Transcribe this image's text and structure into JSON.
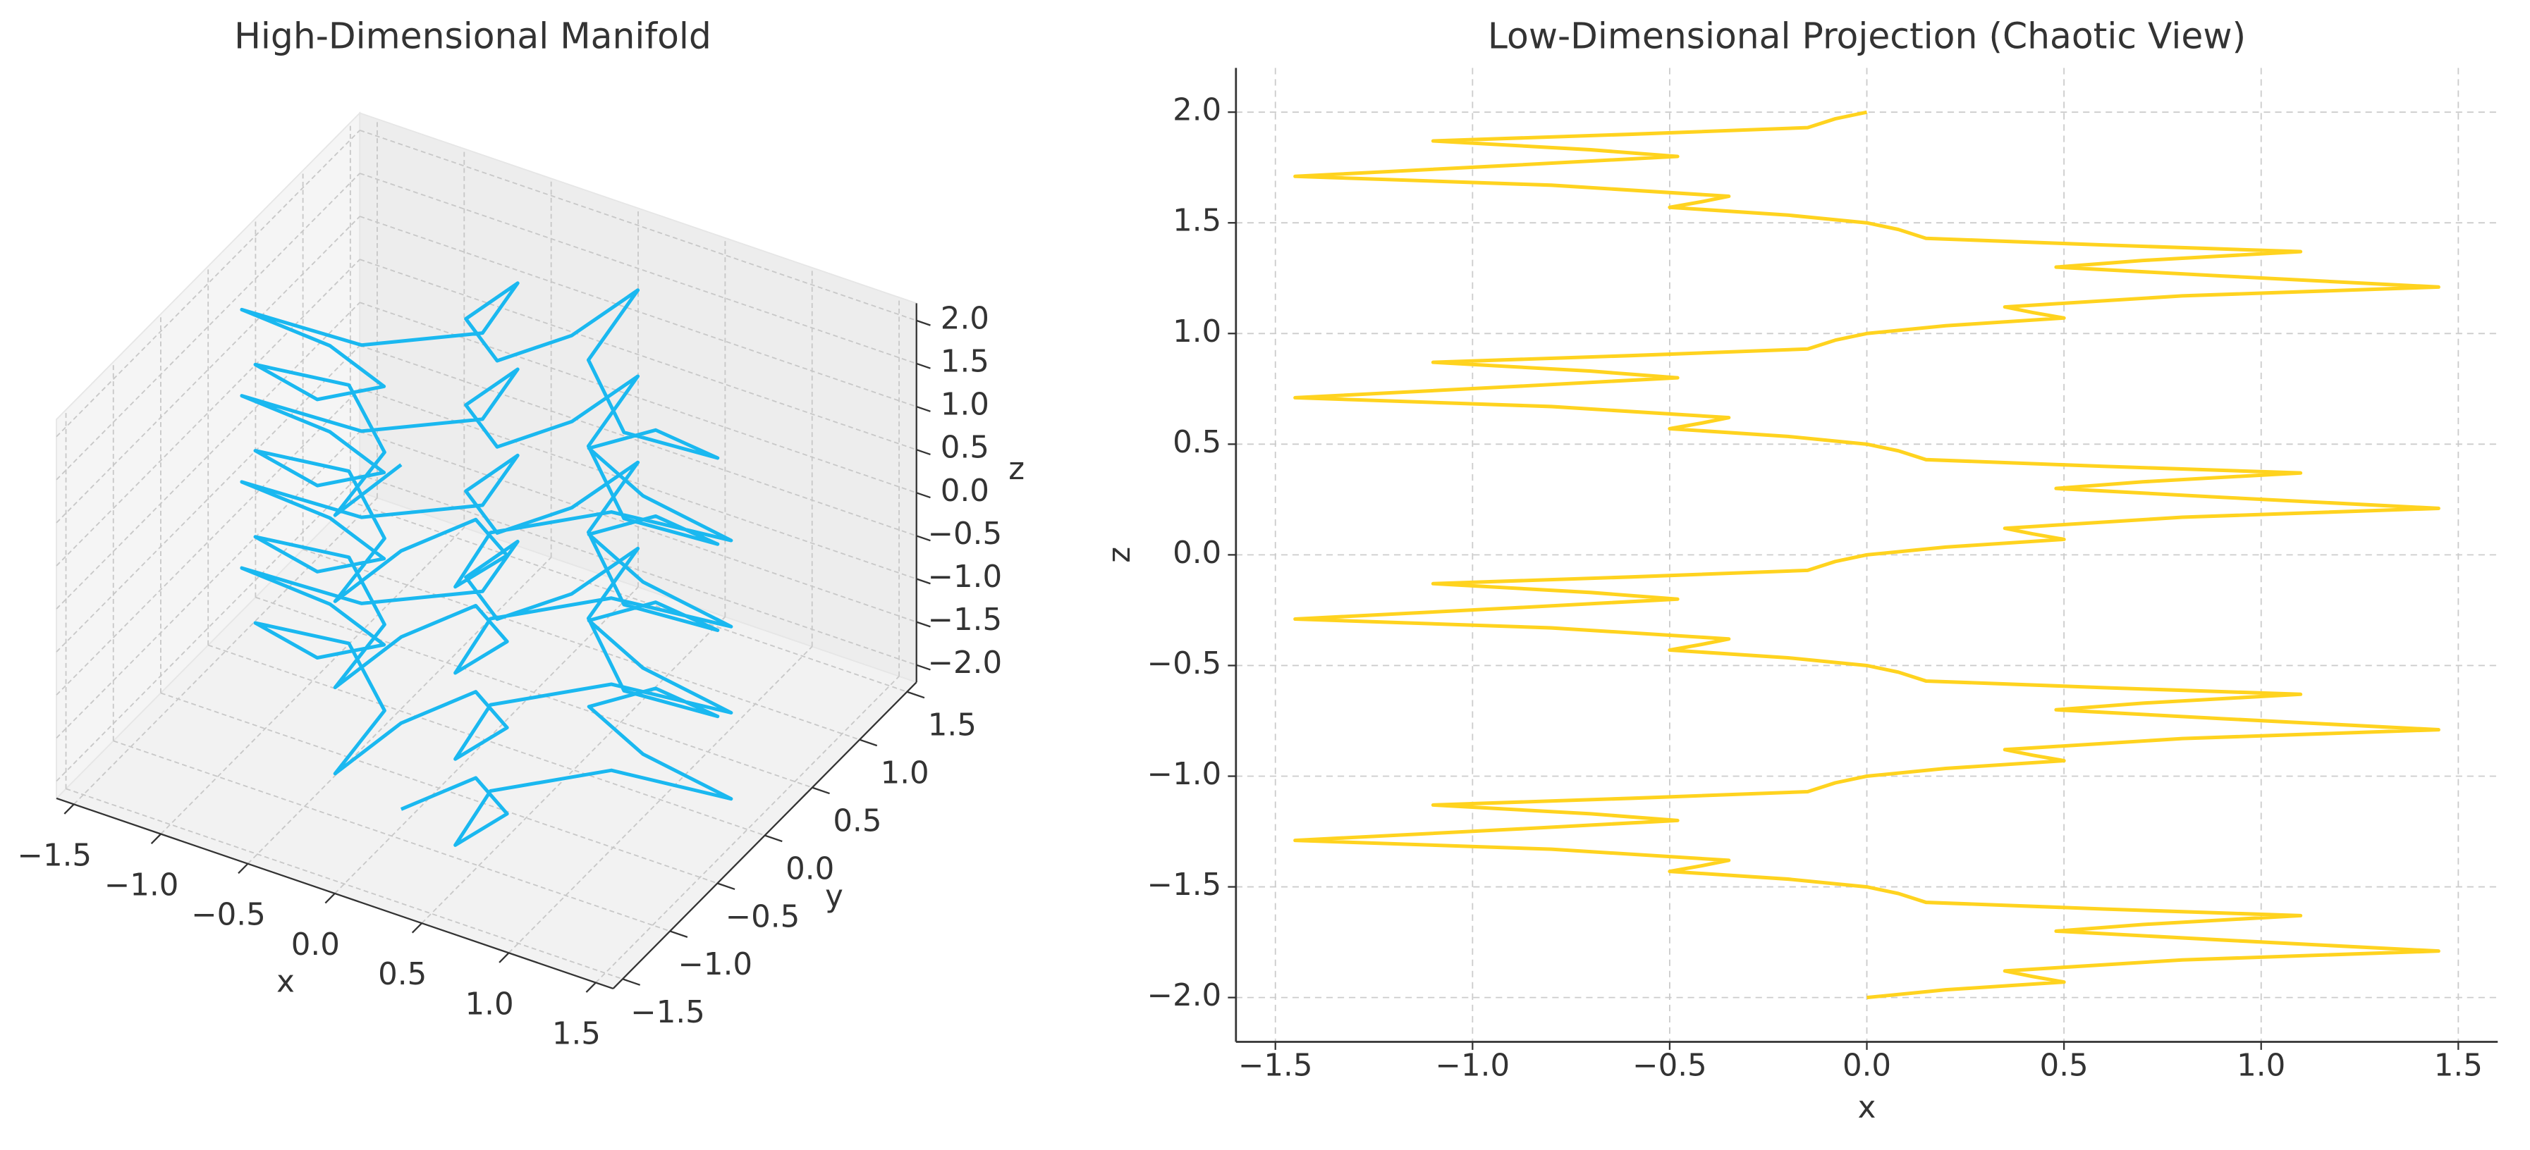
{
  "chart_data": [
    {
      "type": "line3d",
      "title": "High-Dimensional Manifold",
      "xlabel": "x",
      "ylabel": "y",
      "zlabel": "z",
      "xlim": [
        -1.6,
        1.6
      ],
      "ylim": [
        -1.6,
        1.6
      ],
      "zlim": [
        -2.2,
        2.2
      ],
      "xticks": [
        {
          "value": -1.5,
          "label": "−1.5"
        },
        {
          "value": -1,
          "label": "−1.0"
        },
        {
          "value": -0.5,
          "label": "−0.5"
        },
        {
          "value": 0,
          "label": "0.0"
        },
        0.5,
        {
          "value": 1,
          "label": "1.0"
        },
        1.5
      ],
      "yticks": [
        {
          "value": -1.5,
          "label": "−1.5"
        },
        {
          "value": -1,
          "label": "−1.0"
        },
        {
          "value": -0.5,
          "label": "−0.5"
        },
        {
          "value": 0,
          "label": "0.0"
        },
        0.5,
        {
          "value": 1,
          "label": "1.0"
        },
        1.5
      ],
      "zticks": [
        {
          "value": -2,
          "label": "−2.0"
        },
        {
          "value": -1.5,
          "label": "−1.5"
        },
        {
          "value": -1,
          "label": "−1.0"
        },
        {
          "value": -0.5,
          "label": "−0.5"
        },
        {
          "value": 0,
          "label": "0.0"
        },
        0.5,
        {
          "value": 1,
          "label": "1.0"
        },
        1.5,
        {
          "value": 2,
          "label": "2.0"
        }
      ],
      "grid": true,
      "series": [
        {
          "color": "#1ab8f0",
          "x": [
            0,
            -0.08,
            -0.15,
            -0.6,
            -1.1,
            -0.7,
            -0.48,
            -0.9,
            -1.45,
            -0.8,
            -0.35,
            -0.42,
            -0.5,
            -0.2,
            0,
            0.08,
            0.15,
            0.6,
            1.1,
            0.7,
            0.48,
            0.9,
            1.45,
            0.8,
            0.35,
            0.42,
            0.5,
            0.2,
            0,
            -0.08,
            -0.15,
            -0.6,
            -1.1,
            -0.7,
            -0.48,
            -0.9,
            -1.45,
            -0.8,
            -0.35,
            -0.42,
            -0.5,
            -0.2,
            0,
            0.08,
            0.15,
            0.6,
            1.1,
            0.7,
            0.48,
            0.9,
            1.45,
            0.8,
            0.35,
            0.42,
            0.5,
            0.2,
            0,
            -0.08,
            -0.15,
            -0.6,
            -1.1,
            -0.7,
            -0.48,
            -0.9,
            -1.45,
            -0.8,
            -0.35,
            -0.42,
            -0.5,
            -0.2,
            0,
            0.08,
            0.15,
            0.6,
            1.1,
            0.7,
            0.48,
            0.9,
            1.45,
            0.8,
            0.35,
            0.42,
            0.5,
            0.2,
            0,
            -0.08,
            -0.15,
            -0.6,
            -1.1,
            -0.7,
            -0.48,
            -0.9,
            -1.45,
            -0.8,
            -0.35,
            -0.42,
            -0.5,
            -0.2,
            0,
            0.08,
            0.15,
            0.6,
            1.1,
            0.7,
            0.48,
            0.9,
            1.45,
            0.8,
            0.35,
            0.42,
            0.5,
            0.2,
            0
          ],
          "y": [
            -0.9,
            -1.45,
            -0.8,
            -0.35,
            -0.42,
            -0.5,
            -0.2,
            0,
            0.08,
            0.15,
            0.6,
            1.1,
            0.7,
            0.48,
            0.9,
            1.45,
            0.8,
            0.35,
            0.42,
            0.5,
            0.2,
            0,
            -0.08,
            -0.15,
            -0.6,
            -1.1,
            -0.7,
            -0.48,
            -0.9,
            -1.45,
            -0.8,
            -0.35,
            -0.42,
            -0.5,
            -0.2,
            0,
            0.08,
            0.15,
            0.6,
            1.1,
            0.7,
            0.48,
            0.9,
            1.45,
            0.8,
            0.35,
            0.42,
            0.5,
            0.2,
            0,
            -0.08,
            -0.15,
            -0.6,
            -1.1,
            -0.7,
            -0.48,
            -0.9,
            -1.45,
            -0.8,
            -0.35,
            -0.42,
            -0.5,
            -0.2,
            0,
            0.08,
            0.15,
            0.6,
            1.1,
            0.7,
            0.48,
            0.9,
            1.45,
            0.8,
            0.35,
            0.42,
            0.5,
            0.2,
            0,
            -0.08,
            -0.15,
            -0.6,
            -1.1,
            -0.7,
            -0.48,
            -0.9,
            -1.45,
            -0.8,
            -0.35,
            -0.42,
            -0.5,
            -0.2,
            0,
            0.08,
            0.15,
            0.6,
            1.1,
            0.7,
            0.48,
            0.9,
            1.45,
            0.8,
            0.35,
            0.42,
            0.5,
            0.2,
            0,
            -0.08,
            -0.15,
            -0.6,
            -1.1,
            -0.7,
            -0.48,
            -0.9
          ],
          "z": [
            2.0,
            1.97,
            1.93,
            1.9,
            1.87,
            1.83,
            1.8,
            1.76,
            1.71,
            1.67,
            1.62,
            1.595,
            1.57,
            1.535,
            1.5,
            1.47,
            1.43,
            1.4,
            1.37,
            1.33,
            1.3,
            1.26,
            1.21,
            1.17,
            1.12,
            1.095,
            1.07,
            1.035,
            1.0,
            0.97,
            0.93,
            0.9,
            0.87,
            0.83,
            0.8,
            0.76,
            0.71,
            0.67,
            0.62,
            0.595,
            0.57,
            0.535,
            0.5,
            0.47,
            0.43,
            0.4,
            0.37,
            0.33,
            0.3,
            0.26,
            0.21,
            0.17,
            0.12,
            0.095,
            0.07,
            0.035,
            0.0,
            -0.03,
            -0.07,
            -0.1,
            -0.13,
            -0.17,
            -0.2,
            -0.24,
            -0.29,
            -0.33,
            -0.38,
            -0.405,
            -0.43,
            -0.465,
            -0.5,
            -0.53,
            -0.57,
            -0.6,
            -0.63,
            -0.67,
            -0.7,
            -0.74,
            -0.79,
            -0.83,
            -0.88,
            -0.905,
            -0.93,
            -0.965,
            -1.0,
            -1.03,
            -1.07,
            -1.1,
            -1.13,
            -1.17,
            -1.2,
            -1.24,
            -1.29,
            -1.33,
            -1.38,
            -1.405,
            -1.43,
            -1.465,
            -1.5,
            -1.53,
            -1.57,
            -1.6,
            -1.63,
            -1.67,
            -1.7,
            -1.74,
            -1.79,
            -1.83,
            -1.88,
            -1.905,
            -1.93,
            -1.965,
            -2.0
          ]
        }
      ]
    },
    {
      "type": "line",
      "title": "Low-Dimensional Projection (Chaotic View)",
      "xlabel": "x",
      "ylabel": "z",
      "xlim": [
        -1.6,
        1.6
      ],
      "ylim": [
        -2.2,
        2.2
      ],
      "xticks": [
        {
          "value": -1.5,
          "label": "−1.5"
        },
        {
          "value": -1,
          "label": "−1.0"
        },
        {
          "value": -0.5,
          "label": "−0.5"
        },
        {
          "value": 0,
          "label": "0.0"
        },
        0.5,
        {
          "value": 1,
          "label": "1.0"
        },
        1.5
      ],
      "yticks": [
        {
          "value": -2,
          "label": "−2.0"
        },
        {
          "value": -1.5,
          "label": "−1.5"
        },
        {
          "value": -1,
          "label": "−1.0"
        },
        {
          "value": -0.5,
          "label": "−0.5"
        },
        {
          "value": 0,
          "label": "0.0"
        },
        0.5,
        {
          "value": 1,
          "label": "1.0"
        },
        1.5,
        {
          "value": 2,
          "label": "2.0"
        }
      ],
      "grid": true,
      "series": [
        {
          "color": "#ffd31f",
          "x": [
            0,
            -0.08,
            -0.15,
            -0.6,
            -1.1,
            -0.7,
            -0.48,
            -0.9,
            -1.45,
            -0.8,
            -0.35,
            -0.42,
            -0.5,
            -0.2,
            0,
            0.08,
            0.15,
            0.6,
            1.1,
            0.7,
            0.48,
            0.9,
            1.45,
            0.8,
            0.35,
            0.42,
            0.5,
            0.2,
            0,
            -0.08,
            -0.15,
            -0.6,
            -1.1,
            -0.7,
            -0.48,
            -0.9,
            -1.45,
            -0.8,
            -0.35,
            -0.42,
            -0.5,
            -0.2,
            0,
            0.08,
            0.15,
            0.6,
            1.1,
            0.7,
            0.48,
            0.9,
            1.45,
            0.8,
            0.35,
            0.42,
            0.5,
            0.2,
            0,
            -0.08,
            -0.15,
            -0.6,
            -1.1,
            -0.7,
            -0.48,
            -0.9,
            -1.45,
            -0.8,
            -0.35,
            -0.42,
            -0.5,
            -0.2,
            0,
            0.08,
            0.15,
            0.6,
            1.1,
            0.7,
            0.48,
            0.9,
            1.45,
            0.8,
            0.35,
            0.42,
            0.5,
            0.2,
            0,
            -0.08,
            -0.15,
            -0.6,
            -1.1,
            -0.7,
            -0.48,
            -0.9,
            -1.45,
            -0.8,
            -0.35,
            -0.42,
            -0.5,
            -0.2,
            0,
            0.08,
            0.15,
            0.6,
            1.1,
            0.7,
            0.48,
            0.9,
            1.45,
            0.8,
            0.35,
            0.42,
            0.5,
            0.2,
            0
          ],
          "values": [
            2.0,
            1.97,
            1.93,
            1.9,
            1.87,
            1.83,
            1.8,
            1.76,
            1.71,
            1.67,
            1.62,
            1.595,
            1.57,
            1.535,
            1.5,
            1.47,
            1.43,
            1.4,
            1.37,
            1.33,
            1.3,
            1.26,
            1.21,
            1.17,
            1.12,
            1.095,
            1.07,
            1.035,
            1.0,
            0.97,
            0.93,
            0.9,
            0.87,
            0.83,
            0.8,
            0.76,
            0.71,
            0.67,
            0.62,
            0.595,
            0.57,
            0.535,
            0.5,
            0.47,
            0.43,
            0.4,
            0.37,
            0.33,
            0.3,
            0.26,
            0.21,
            0.17,
            0.12,
            0.095,
            0.07,
            0.035,
            0.0,
            -0.03,
            -0.07,
            -0.1,
            -0.13,
            -0.17,
            -0.2,
            -0.24,
            -0.29,
            -0.33,
            -0.38,
            -0.405,
            -0.43,
            -0.465,
            -0.5,
            -0.53,
            -0.57,
            -0.6,
            -0.63,
            -0.67,
            -0.7,
            -0.74,
            -0.79,
            -0.83,
            -0.88,
            -0.905,
            -0.93,
            -0.965,
            -1.0,
            -1.03,
            -1.07,
            -1.1,
            -1.13,
            -1.17,
            -1.2,
            -1.24,
            -1.29,
            -1.33,
            -1.38,
            -1.405,
            -1.43,
            -1.465,
            -1.5,
            -1.53,
            -1.57,
            -1.6,
            -1.63,
            -1.67,
            -1.7,
            -1.74,
            -1.79,
            -1.83,
            -1.88,
            -1.905,
            -1.93,
            -1.965,
            -2.0
          ]
        }
      ]
    }
  ]
}
